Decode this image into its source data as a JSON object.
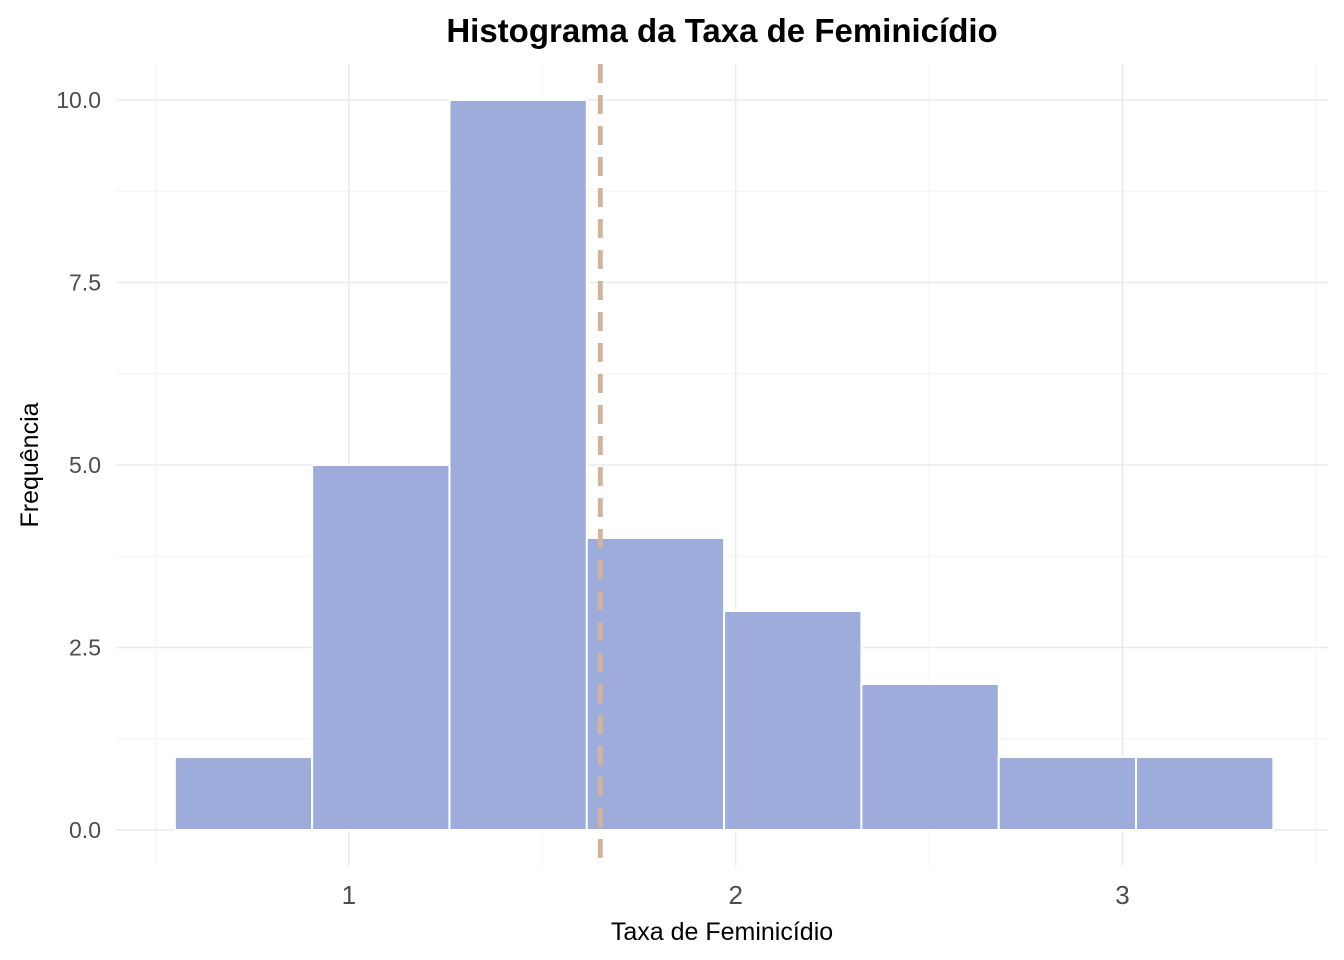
{
  "chart_data": {
    "type": "bar",
    "title": "Histograma da Taxa de Feminicídio",
    "xlabel": "Taxa de Feminicídio",
    "ylabel": "Frequência",
    "bins": [
      {
        "x0": 0.55,
        "x1": 0.905,
        "count": 1
      },
      {
        "x0": 0.905,
        "x1": 1.26,
        "count": 5
      },
      {
        "x0": 1.26,
        "x1": 1.615,
        "count": 10
      },
      {
        "x0": 1.615,
        "x1": 1.97,
        "count": 4
      },
      {
        "x0": 1.97,
        "x1": 2.325,
        "count": 3
      },
      {
        "x0": 2.325,
        "x1": 2.68,
        "count": 2
      },
      {
        "x0": 2.68,
        "x1": 3.035,
        "count": 1
      },
      {
        "x0": 3.035,
        "x1": 3.39,
        "count": 1
      }
    ],
    "xlim": [
      0.5,
      3.5
    ],
    "ylim": [
      0,
      10.5
    ],
    "x_ticks": [
      "1",
      "2",
      "3"
    ],
    "x_tick_values": [
      1,
      2,
      3
    ],
    "y_ticks": [
      "0.0",
      "2.5",
      "5.0",
      "7.5",
      "10.0"
    ],
    "y_tick_values": [
      0,
      2.5,
      5,
      7.5,
      10
    ],
    "mean_line": 1.65,
    "grid": true,
    "bar_color": "#9eacdc",
    "mean_line_color": "#d2b49c"
  }
}
